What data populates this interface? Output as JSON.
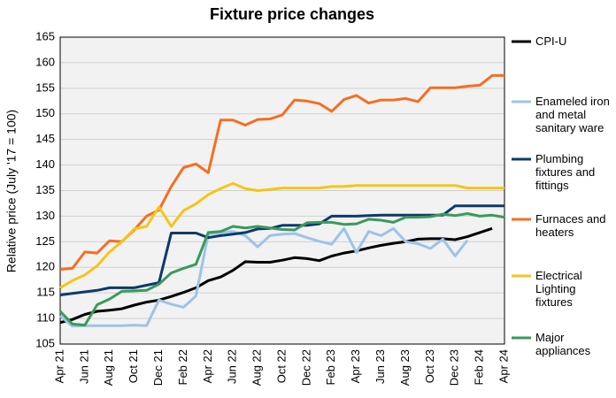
{
  "chart_data": {
    "type": "line",
    "title": "Fixture price changes",
    "y_label": "Relative price (July '17 = 100)",
    "categories": [
      "Apr 21",
      null,
      "Jun 21",
      null,
      "Aug 21",
      null,
      "Oct 21",
      null,
      "Dec 21",
      null,
      "Feb 22",
      null,
      "Apr 22",
      null,
      "Jun 22",
      null,
      "Aug 22",
      null,
      "Oct 22",
      null,
      "Dec 22",
      null,
      "Feb 23",
      null,
      "Apr 23",
      null,
      "Jun 23",
      null,
      "Aug 23",
      null,
      "Oct 23",
      null,
      "Dec 23",
      null,
      "Feb 24",
      null,
      "Apr 24"
    ],
    "ylim": [
      105,
      165
    ],
    "yticks": [
      105,
      110,
      115,
      120,
      125,
      130,
      135,
      140,
      145,
      150,
      155,
      160,
      165
    ],
    "grid": true,
    "series": [
      {
        "name": "CPI-U",
        "color": "#000000",
        "values": [
          109.2,
          109.8,
          110.8,
          111.4,
          111.6,
          111.9,
          112.6,
          113.2,
          113.6,
          114.3,
          115.1,
          116.0,
          117.4,
          118.1,
          119.4,
          121.1,
          121.0,
          121.0,
          121.4,
          121.9,
          121.7,
          121.3,
          122.2,
          122.8,
          123.2,
          123.8,
          124.3,
          124.7,
          125.0,
          125.5,
          125.6,
          125.6,
          125.4,
          126.0,
          126.8,
          127.6,
          null
        ]
      },
      {
        "name": "Enameled iron and metal sanitary ware",
        "color": "#9dc3e6",
        "values": [
          110.5,
          108.5,
          108.6,
          108.6,
          108.6,
          108.6,
          108.7,
          108.6,
          113.6,
          112.8,
          112.2,
          114.4,
          126.5,
          126.8,
          127.0,
          126.2,
          124.0,
          126.2,
          126.5,
          126.6,
          125.8,
          125.1,
          124.5,
          127.6,
          122.9,
          127.0,
          126.2,
          127.6,
          125.0,
          124.6,
          123.7,
          125.5,
          122.2,
          125.3,
          null,
          null,
          null
        ]
      },
      {
        "name": "Plumbing fixtures and fittings",
        "color": "#0c3a6b",
        "values": [
          114.6,
          114.9,
          115.2,
          115.5,
          116.0,
          116.0,
          116.0,
          116.5,
          117.0,
          126.7,
          126.7,
          126.7,
          125.8,
          126.2,
          126.5,
          126.8,
          127.5,
          127.6,
          128.2,
          128.2,
          128.2,
          128.5,
          130.0,
          130.0,
          130.0,
          130.1,
          130.2,
          130.2,
          130.2,
          130.2,
          130.2,
          130.2,
          132.0,
          132.0,
          132.0,
          132.0,
          132.0
        ]
      },
      {
        "name": "Furnaces and heaters",
        "color": "#f36f21",
        "values": [
          119.6,
          119.8,
          123.0,
          122.8,
          125.2,
          125.0,
          127.3,
          130.0,
          131.2,
          135.8,
          139.5,
          140.2,
          138.5,
          148.8,
          148.8,
          147.8,
          148.9,
          149.0,
          149.8,
          152.7,
          152.5,
          152.0,
          150.5,
          152.8,
          153.6,
          152.1,
          152.7,
          152.7,
          153.0,
          152.4,
          155.1,
          155.1,
          155.1,
          155.4,
          155.6,
          157.5,
          157.5
        ]
      },
      {
        "name": "Electrical Lighting fixtures",
        "color": "#f5c518",
        "values": [
          116.0,
          117.4,
          118.5,
          120.3,
          123.0,
          125.0,
          127.5,
          128.0,
          131.8,
          128.0,
          131.1,
          132.4,
          134.2,
          135.4,
          136.4,
          135.4,
          135.0,
          135.2,
          135.5,
          135.5,
          135.5,
          135.5,
          135.8,
          135.8,
          136.0,
          136.0,
          136.0,
          136.0,
          136.0,
          136.0,
          136.0,
          136.0,
          136.0,
          135.5,
          135.5,
          135.5,
          135.5
        ]
      },
      {
        "name": "Major appliances",
        "color": "#3a9a5b",
        "values": [
          111.4,
          108.9,
          108.7,
          112.7,
          113.8,
          115.3,
          115.4,
          115.5,
          116.7,
          118.9,
          119.8,
          120.6,
          126.8,
          127.0,
          128.0,
          127.7,
          128.0,
          127.7,
          127.4,
          127.3,
          128.7,
          128.8,
          128.8,
          128.4,
          128.5,
          129.4,
          129.2,
          128.8,
          129.8,
          129.8,
          129.9,
          130.4,
          130.1,
          130.5,
          130.0,
          130.2,
          129.8
        ]
      }
    ]
  }
}
